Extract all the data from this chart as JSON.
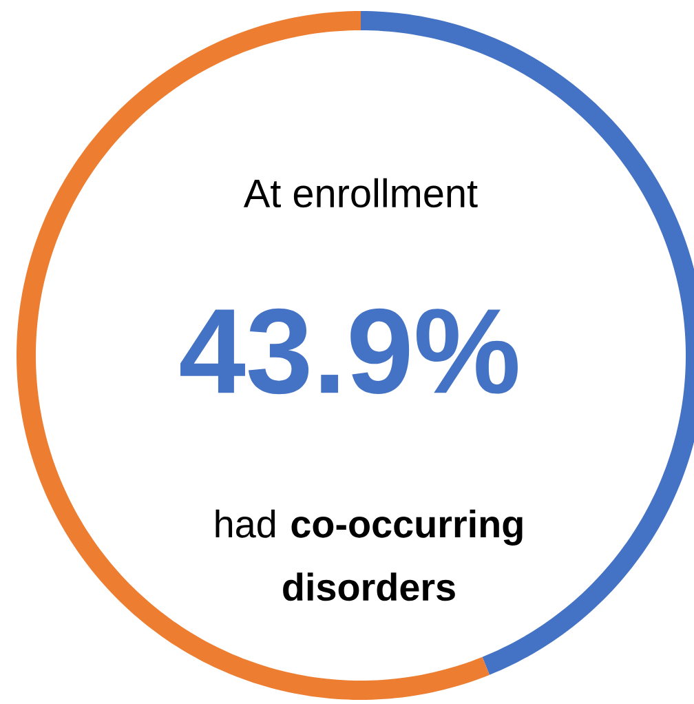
{
  "chart_data": {
    "type": "donut",
    "title": "At enrollment",
    "categories": [
      null,
      null
    ],
    "values": [
      43.9,
      56.1
    ],
    "colors": [
      "#4472c4",
      "#ed7d31"
    ],
    "annotations": [
      "43.9%",
      "had **co-occurring disorders**"
    ]
  }
}
